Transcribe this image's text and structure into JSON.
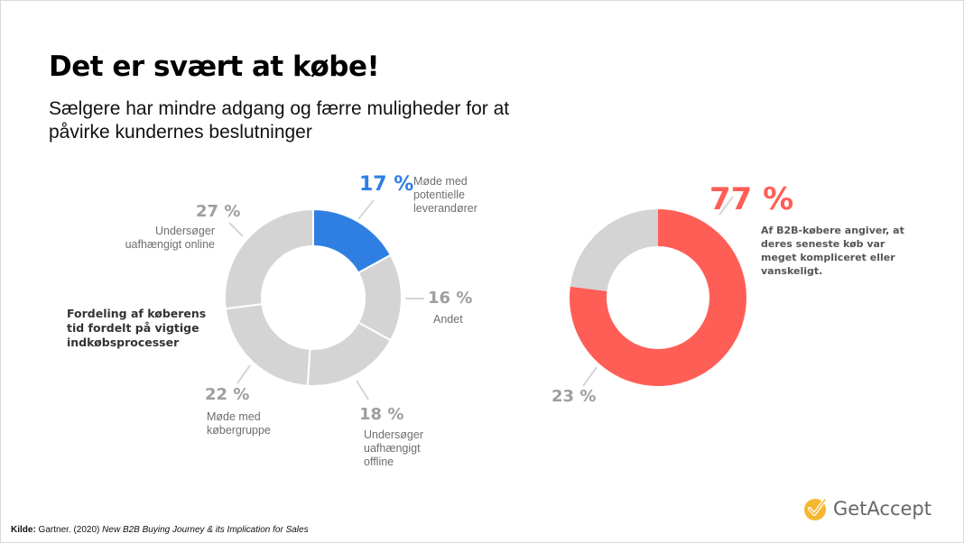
{
  "slide": {
    "title": "Det er svært at købe!",
    "subtitle": "Sælgere har mindre adgang og færre muligheder for at påvirke kundernes beslutninger"
  },
  "chart_data": [
    {
      "type": "pie",
      "variant": "donut",
      "title": "",
      "description_label": "Fordeling af køberens tid fordelt på vigtige indkøbsprocesser",
      "categories": [
        "Møde med potentielle leverandører",
        "Andet",
        "Undersøger uafhængigt offline",
        "Møde med købergruppe",
        "Undersøger uafhængigt online"
      ],
      "values": [
        17,
        16,
        18,
        22,
        27
      ],
      "value_labels": [
        "17 %",
        "16 %",
        "18 %",
        "22 %",
        "27 %"
      ],
      "colors": [
        "#2f7fe3",
        "#d4d4d4",
        "#d4d4d4",
        "#d4d4d4",
        "#d4d4d4"
      ],
      "highlight": "Møde med potentielle leverandører"
    },
    {
      "type": "pie",
      "variant": "donut",
      "title": "",
      "categories": [
        "Af B2B-købere angiver, at deres seneste køb var meget kompliceret eller vanskeligt.",
        ""
      ],
      "values": [
        77,
        23
      ],
      "value_labels": [
        "77 %",
        "23 %"
      ],
      "colors": [
        "#ff5e57",
        "#d4d4d4"
      ]
    }
  ],
  "source": {
    "prefix": "Kilde:",
    "text": " Gartner. (2020) ",
    "italic": "New B2B Buying Journey & its Implication for Sales"
  },
  "logo": {
    "text": "GetAccept",
    "icon": "check-badge-icon",
    "color": "#f5b731"
  }
}
